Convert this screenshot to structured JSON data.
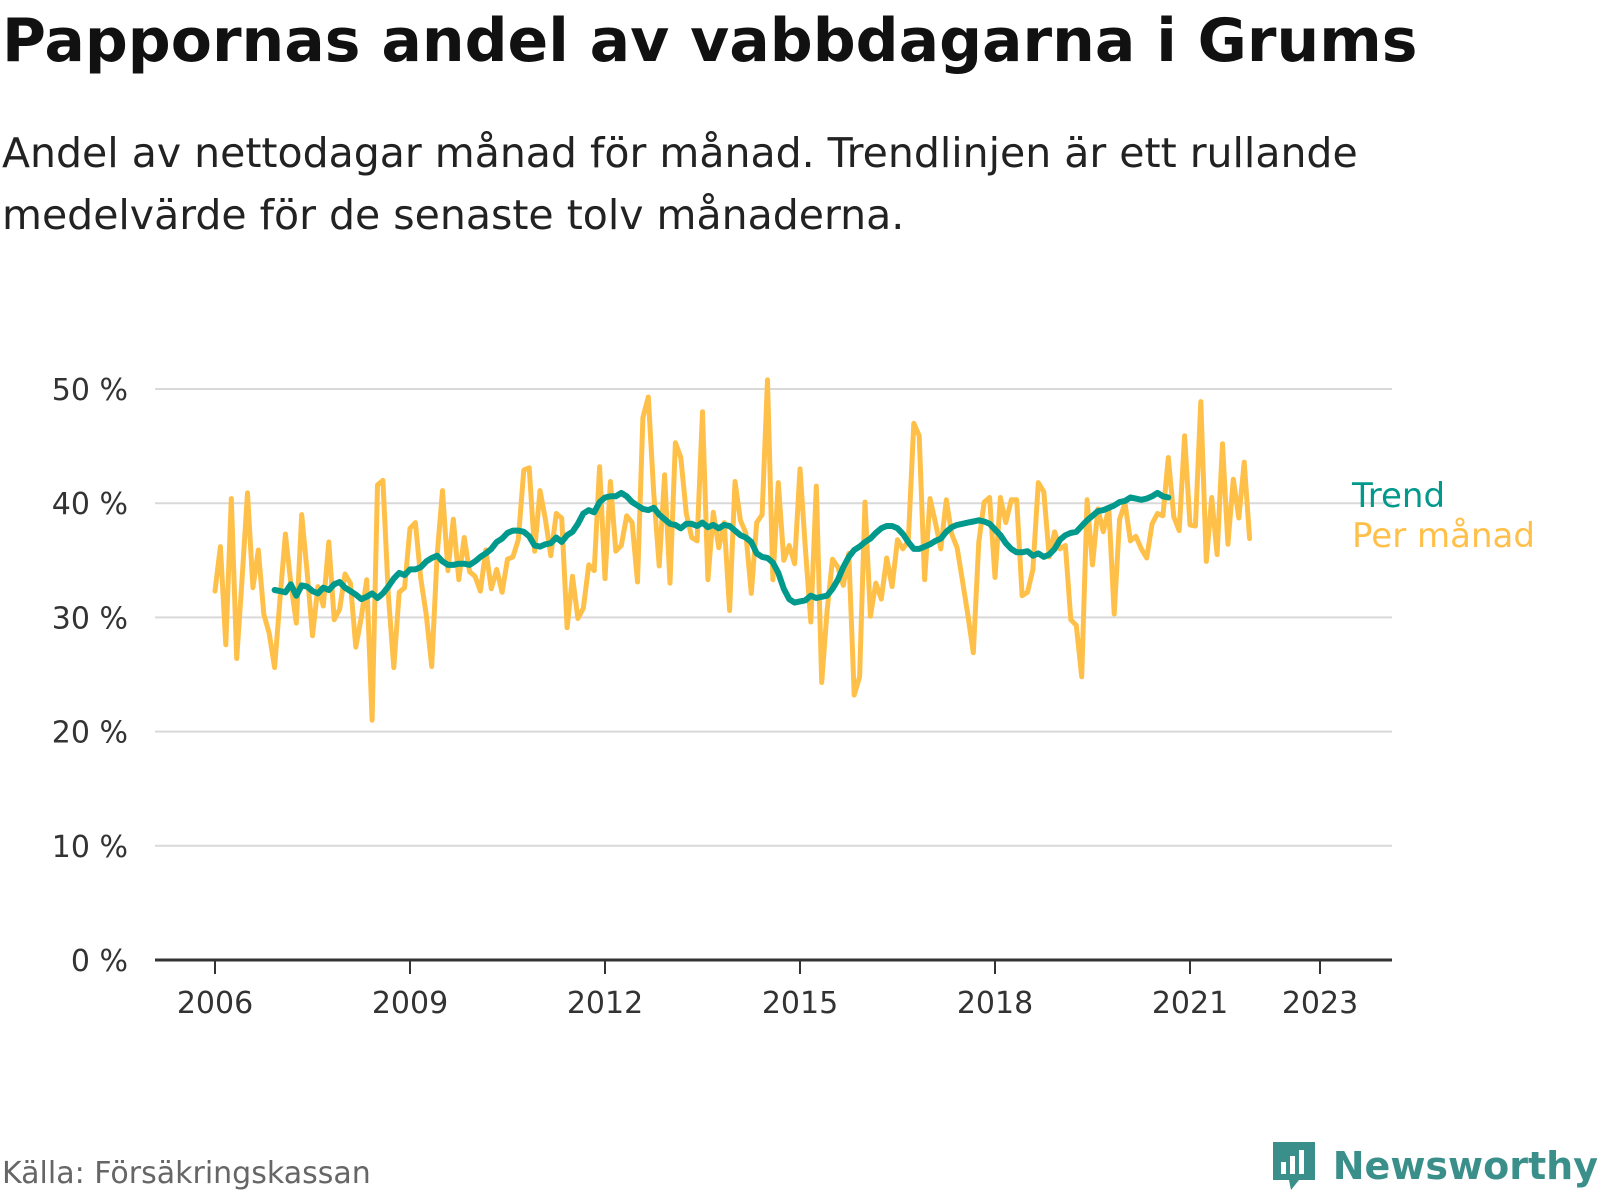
{
  "title": "Pappornas andel av vabbdagarna i Grums",
  "subtitle": "Andel av nettodagar månad för månad. Trendlinjen är ett rullande medelvärde för de senaste tolv månaderna.",
  "source": "Källa: Försäkringskassan",
  "brand": {
    "name": "Newsworthy",
    "icon": "newsworthy-logo-icon",
    "color": "#3a8f8a"
  },
  "chart_data": {
    "type": "line",
    "title": "Pappornas andel av vabbdagarna i Grums",
    "ylim": [
      0,
      50
    ],
    "y_ticks": [
      "0 %",
      "10 %",
      "20 %",
      "30 %",
      "40 %",
      "50 %"
    ],
    "x_ticks": [
      "2006",
      "2009",
      "2012",
      "2015",
      "2018",
      "2021",
      "2023"
    ],
    "grid": true,
    "legend": "inline-right",
    "series": [
      {
        "name": "Per månad",
        "color": "#ffc04a",
        "start": "2006-01",
        "values": [
          32.3,
          36.2,
          27.6,
          40.4,
          26.4,
          33.4,
          40.9,
          32.6,
          35.9,
          30.3,
          28.6,
          25.6,
          31.6,
          37.3,
          33.0,
          29.5,
          39.0,
          34.0,
          28.4,
          32.7,
          31.0,
          36.6,
          29.8,
          30.7,
          33.8,
          33.0,
          27.4,
          30.0,
          33.3,
          21.0,
          41.6,
          42.0,
          32.0,
          25.6,
          32.2,
          32.6,
          37.8,
          38.3,
          33.4,
          30.2,
          25.7,
          35.4,
          41.1,
          34.1,
          38.6,
          33.3,
          37.0,
          34.0,
          33.6,
          32.3,
          35.9,
          32.5,
          34.2,
          32.2,
          35.1,
          35.3,
          36.8,
          42.9,
          43.1,
          35.8,
          41.1,
          38.6,
          35.4,
          39.1,
          38.7,
          29.1,
          33.6,
          29.9,
          30.8,
          34.6,
          34.1,
          43.2,
          33.4,
          41.9,
          35.8,
          36.3,
          38.9,
          38.3,
          33.1,
          47.5,
          49.3,
          40.8,
          34.5,
          42.5,
          33.0,
          45.3,
          44.0,
          39.1,
          37.0,
          36.7,
          48.0,
          33.3,
          39.2,
          36.1,
          38.3,
          30.6,
          41.9,
          38.5,
          37.4,
          32.1,
          38.3,
          39.0,
          50.8,
          33.3,
          41.8,
          35.0,
          36.3,
          34.7,
          43.0,
          36.0,
          29.6,
          41.5,
          24.3,
          30.6,
          35.1,
          34.4,
          32.8,
          35.6,
          23.2,
          24.8,
          40.1,
          30.1,
          33.0,
          31.6,
          35.2,
          32.7,
          36.8,
          36.0,
          36.7,
          47.0,
          45.9,
          33.3,
          40.4,
          38.3,
          36.0,
          40.3,
          37.3,
          36.1,
          33.2,
          30.2,
          26.9,
          36.6,
          40.1,
          40.5,
          33.5,
          40.5,
          38.3,
          40.3,
          40.3,
          31.9,
          32.2,
          34.2,
          41.8,
          41.0,
          35.3,
          37.5,
          36.0,
          36.3,
          29.8,
          29.3,
          24.8,
          40.3,
          34.6,
          39.5,
          37.5,
          39.6,
          30.3,
          38.6,
          40.0,
          36.7,
          37.1,
          36.0,
          35.2,
          38.2,
          39.1,
          38.9,
          44.0,
          38.8,
          37.6,
          45.9,
          38.1,
          38.0,
          48.9,
          34.9,
          40.5,
          35.5,
          45.2,
          36.4,
          42.1,
          38.7,
          43.6,
          36.9
        ]
      },
      {
        "name": "Trend",
        "color": "#00998c",
        "start": "2006-12",
        "values": [
          32.4,
          32.3,
          32.2,
          32.9,
          31.9,
          32.8,
          32.7,
          32.3,
          32.1,
          32.6,
          32.4,
          32.9,
          33.1,
          32.6,
          32.3,
          32.0,
          31.6,
          31.8,
          32.1,
          31.7,
          32.1,
          32.7,
          33.4,
          33.9,
          33.7,
          34.2,
          34.2,
          34.4,
          34.9,
          35.2,
          35.4,
          34.9,
          34.6,
          34.6,
          34.7,
          34.7,
          34.6,
          34.9,
          35.3,
          35.6,
          36.0,
          36.6,
          36.9,
          37.4,
          37.6,
          37.6,
          37.5,
          37.1,
          36.3,
          36.2,
          36.4,
          36.5,
          37.0,
          36.6,
          37.2,
          37.5,
          38.2,
          39.1,
          39.4,
          39.2,
          40.1,
          40.5,
          40.6,
          40.6,
          40.9,
          40.6,
          40.1,
          39.8,
          39.5,
          39.4,
          39.6,
          39.0,
          38.6,
          38.2,
          38.1,
          37.8,
          38.2,
          38.2,
          38.0,
          38.3,
          37.9,
          38.1,
          37.8,
          38.1,
          38.0,
          37.6,
          37.2,
          37.0,
          36.6,
          35.6,
          35.3,
          35.2,
          34.8,
          33.9,
          32.5,
          31.6,
          31.3,
          31.4,
          31.5,
          31.9,
          31.7,
          31.8,
          31.9,
          32.5,
          33.3,
          34.4,
          35.3,
          35.9,
          36.2,
          36.6,
          36.9,
          37.4,
          37.8,
          38.0,
          38.0,
          37.8,
          37.3,
          36.6,
          36.0,
          36.0,
          36.2,
          36.4,
          36.7,
          36.9,
          37.5,
          37.9,
          38.1,
          38.2,
          38.3,
          38.4,
          38.5,
          38.4,
          38.2,
          37.7,
          37.2,
          36.5,
          36.0,
          35.7,
          35.7,
          35.8,
          35.4,
          35.6,
          35.3,
          35.5,
          36.0,
          36.8,
          37.2,
          37.4,
          37.5,
          38.0,
          38.5,
          38.9,
          39.3,
          39.4,
          39.6,
          39.8,
          40.1,
          40.2,
          40.5,
          40.4,
          40.3,
          40.4,
          40.6,
          40.9,
          40.6,
          40.5
        ]
      }
    ]
  }
}
